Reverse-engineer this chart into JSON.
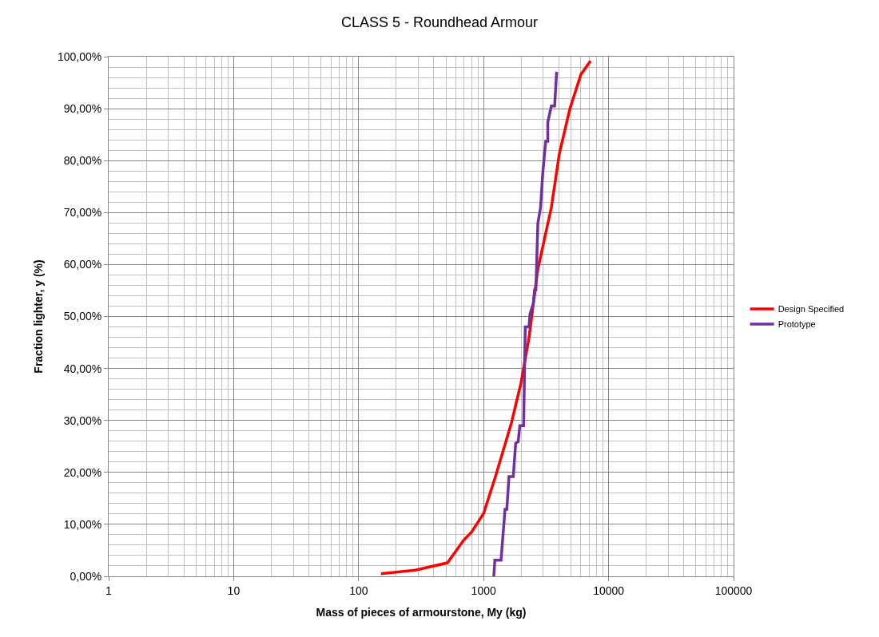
{
  "chart_data": {
    "type": "line",
    "title": "CLASS 5 - Roundhead Armour",
    "xlabel": "Mass of pieces of armourstone, My (kg)",
    "ylabel": "Fraction lighter, y (%)",
    "log": "x",
    "grid": true,
    "legend": "right",
    "marker": "none",
    "line_style": "solid",
    "xlim": [
      1,
      100000
    ],
    "xticks": [
      1,
      10,
      100,
      1000,
      10000,
      100000
    ],
    "ylim": [
      0,
      100
    ],
    "yticks": [
      {
        "value": 0,
        "label": "0,00%"
      },
      {
        "value": 10,
        "label": "10,00%"
      },
      {
        "value": 20,
        "label": "20,00%"
      },
      {
        "value": 30,
        "label": "30,00%"
      },
      {
        "value": 40,
        "label": "40,00%"
      },
      {
        "value": 50,
        "label": "50,00%"
      },
      {
        "value": 60,
        "label": "60,00%"
      },
      {
        "value": 70,
        "label": "70,00%"
      },
      {
        "value": 80,
        "label": "80,00%"
      },
      {
        "value": 90,
        "label": "90,00%"
      },
      {
        "value": 100,
        "label": "100,00%"
      }
    ],
    "series": [
      {
        "name": "Design Specified",
        "color": "#ff0000",
        "x": [
          151,
          285,
          514,
          690,
          800,
          1000,
          1244,
          1668,
          1991,
          2307,
          2500,
          2716,
          3485,
          4033,
          4890,
          6010,
          7175
        ],
        "values": [
          0.5,
          1.2,
          2.6,
          6.9,
          8.5,
          12.1,
          19.2,
          29.5,
          37.2,
          45.9,
          52.5,
          59.1,
          71.0,
          81.3,
          89.9,
          96.6,
          99.2
        ]
      },
      {
        "name": "Prototype",
        "color": "#7030a0",
        "x": [
          1207,
          1230,
          1378,
          1484,
          1534,
          1596,
          1727,
          1806,
          1890,
          1950,
          2090,
          2154,
          2307,
          2350,
          2500,
          2559,
          2620,
          2716,
          2857,
          2973,
          3138,
          3262,
          3262,
          3485,
          3700,
          3842
        ],
        "values": [
          0,
          3.1,
          3.1,
          12.9,
          12.9,
          19.2,
          19.2,
          25.6,
          25.9,
          29.0,
          29.0,
          48.0,
          48.0,
          50.5,
          52.5,
          55.1,
          55.1,
          67.9,
          71.0,
          77.6,
          83.7,
          83.7,
          87.4,
          90.5,
          90.5,
          97.1
        ]
      }
    ]
  }
}
